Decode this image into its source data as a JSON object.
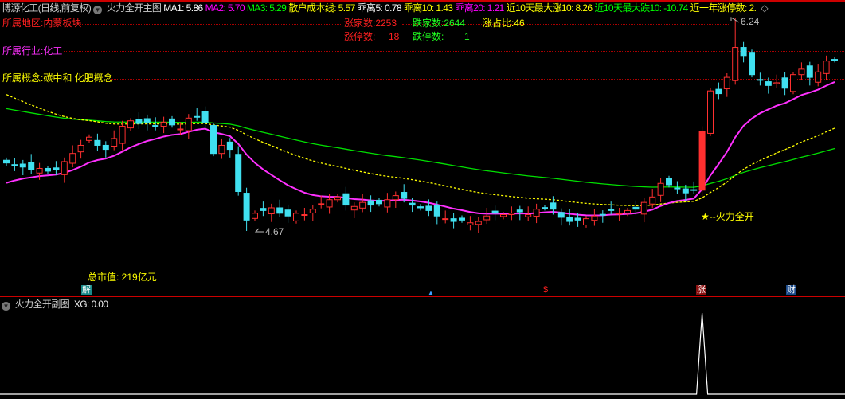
{
  "header": {
    "title": "博源化工(日线,前复权)",
    "indicator_name": "火力全开主图",
    "items": [
      {
        "label": "MA1: 5.86",
        "color": "#ffffff"
      },
      {
        "label": "MA2: 5.70",
        "color": "#ff00ff"
      },
      {
        "label": "MA3: 5.29",
        "color": "#00ff00"
      },
      {
        "label": "散户成本线: 5.57",
        "color": "#ffff00"
      },
      {
        "label": "乖离5: 0.78",
        "color": "#ffffff"
      },
      {
        "label": "乖离10: 1.43",
        "color": "#ffff00"
      },
      {
        "label": "乖离20: 1.21",
        "color": "#ff00ff"
      },
      {
        "label": "近10天最大涨10: 8.26",
        "color": "#ffff00"
      },
      {
        "label": "近10天最大跌10: -10.74",
        "color": "#00ff00"
      },
      {
        "label": "近一年涨停数: 2.",
        "color": "#ffff00"
      }
    ],
    "more_icon": "diamond-icon"
  },
  "info": {
    "region": "所属地区:内蒙板块",
    "industry": "所属行业:化工",
    "concept": "所属概念:碳中和 化肥概念",
    "up_count": "涨家数:2253",
    "down_count": "跌家数:2644",
    "up_ratio": "涨占比:46",
    "limit_up": "涨停数:",
    "limit_up_val": "18",
    "limit_down": "跌停数:",
    "limit_down_val": "1"
  },
  "annotations": {
    "high": "6.24",
    "low": "4.67",
    "signal": "★--火力全开",
    "market_cap": "总市值: 219亿元"
  },
  "markers": [
    {
      "label": "解",
      "bg": "#1a8a8a"
    },
    {
      "label": "▲",
      "bg": "transparent"
    },
    {
      "label": "$",
      "bg": "transparent"
    },
    {
      "label": "涨",
      "bg": "#8a1010"
    },
    {
      "label": "财",
      "bg": "#1a4a8a"
    }
  ],
  "sub": {
    "name": "火力全开副图",
    "xg": "XG: 0.00"
  },
  "colors": {
    "up": "#ff3030",
    "down": "#40e0f0",
    "ma_long": "#00e000",
    "ma_mid": "#ff30ff",
    "cost": "#ffff00"
  },
  "chart_data": {
    "type": "candlestick",
    "close": [
      5.17,
      5.15,
      5.14,
      5.12,
      5.13,
      5.11,
      5.12,
      5.18,
      5.24,
      5.3,
      5.36,
      5.3,
      5.27,
      5.35,
      5.44,
      5.48,
      5.46,
      5.47,
      5.44,
      5.47,
      5.45,
      5.42,
      5.5,
      5.51,
      5.47,
      5.24,
      5.3,
      5.27,
      4.96,
      4.75,
      4.8,
      4.82,
      4.84,
      4.8,
      4.78,
      4.8,
      4.79,
      4.83,
      4.87,
      4.9,
      4.92,
      4.86,
      4.85,
      4.88,
      4.86,
      4.87,
      4.9,
      4.93,
      4.91,
      4.86,
      4.84,
      4.82,
      4.78,
      4.76,
      4.74,
      4.75,
      4.73,
      4.74,
      4.78,
      4.8,
      4.79,
      4.8,
      4.81,
      4.79,
      4.83,
      4.84,
      4.83,
      4.77,
      4.74,
      4.75,
      4.76,
      4.78,
      4.79,
      4.82,
      4.8,
      4.82,
      4.83,
      4.88,
      4.92,
      5.02,
      5.01,
      4.98,
      4.95,
      4.97,
      5.4,
      5.7,
      5.68,
      5.8,
      6.02,
      5.96,
      5.82,
      5.78,
      5.74,
      5.76,
      5.72,
      5.82,
      5.86,
      5.8,
      5.84,
      5.92,
      5.93
    ],
    "ylim": [
      4.67,
      6.24
    ],
    "signal_index": 84
  }
}
